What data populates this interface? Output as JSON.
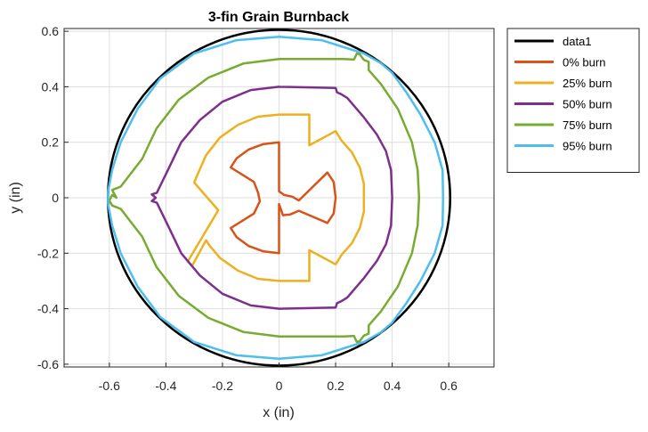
{
  "chart_data": {
    "type": "line",
    "title": "3-fin Grain Burnback",
    "xlabel": "x (in)",
    "ylabel": "y (in)",
    "xlim": [
      -0.76,
      0.76
    ],
    "ylim": [
      -0.61,
      0.61
    ],
    "x_ticks": [
      -0.6,
      -0.4,
      -0.2,
      0,
      0.2,
      0.4,
      0.6
    ],
    "y_ticks": [
      -0.6,
      -0.4,
      -0.2,
      0,
      0.2,
      0.4,
      0.6
    ],
    "x_tick_labels": [
      "-0.6",
      "-0.4",
      "-0.2",
      "0",
      "0.2",
      "0.4",
      "0.6"
    ],
    "y_tick_labels": [
      "-0.6",
      "-0.4",
      "-0.2",
      "0",
      "0.2",
      "0.4",
      "0.6"
    ],
    "grid": true,
    "legend_position": "top-right-outside",
    "series": [
      {
        "name": "data1",
        "color": "#000000",
        "circle": {
          "cx": 0,
          "cy": 0,
          "r": 0.605
        }
      },
      {
        "name": "0% burn",
        "color": "#d95319",
        "points": [
          [
            0.0,
            -0.023
          ],
          [
            0.0,
            -0.2
          ],
          [
            -0.057,
            -0.193
          ],
          [
            -0.107,
            -0.174
          ],
          [
            -0.15,
            -0.142
          ],
          [
            -0.171,
            -0.109
          ],
          [
            -0.089,
            -0.057
          ],
          [
            -0.068,
            -0.013
          ],
          [
            -0.074,
            0.018
          ],
          [
            -0.089,
            0.057
          ],
          [
            -0.171,
            0.109
          ],
          [
            -0.15,
            0.142
          ],
          [
            -0.107,
            0.174
          ],
          [
            -0.057,
            0.193
          ],
          [
            0.0,
            0.2
          ],
          [
            0.0,
            0.023
          ],
          [
            0.018,
            0.01
          ],
          [
            0.047,
            0.004
          ],
          [
            0.07,
            -0.01
          ],
          [
            0.171,
            0.091
          ],
          [
            0.193,
            0.057
          ],
          [
            0.2,
            0.0
          ],
          [
            0.193,
            -0.057
          ],
          [
            0.171,
            -0.091
          ],
          [
            0.07,
            -0.047
          ],
          [
            0.04,
            -0.06
          ],
          [
            0.014,
            -0.063
          ],
          [
            0.0,
            -0.023
          ]
        ]
      },
      {
        "name": "25% burn",
        "color": "#edb120",
        "points": [
          [
            0.0,
            0.3
          ],
          [
            0.107,
            0.3
          ],
          [
            0.107,
            0.189
          ],
          [
            0.2,
            0.24
          ],
          [
            0.221,
            0.206
          ],
          [
            0.258,
            0.163
          ],
          [
            0.286,
            0.108
          ],
          [
            0.3,
            0.05
          ],
          [
            0.3,
            -0.05
          ],
          [
            0.286,
            -0.108
          ],
          [
            0.258,
            -0.163
          ],
          [
            0.221,
            -0.206
          ],
          [
            0.2,
            -0.24
          ],
          [
            0.107,
            -0.189
          ],
          [
            0.107,
            -0.3
          ],
          [
            0.0,
            -0.3
          ],
          [
            -0.075,
            -0.292
          ],
          [
            -0.145,
            -0.263
          ],
          [
            -0.209,
            -0.217
          ],
          [
            -0.246,
            -0.172
          ],
          [
            -0.258,
            -0.153
          ],
          [
            -0.307,
            -0.245
          ],
          [
            -0.323,
            -0.23
          ],
          [
            -0.215,
            -0.045
          ],
          [
            -0.3,
            0.055
          ],
          [
            -0.29,
            0.079
          ],
          [
            -0.258,
            0.153
          ],
          [
            -0.209,
            0.217
          ],
          [
            -0.145,
            0.263
          ],
          [
            -0.075,
            0.292
          ],
          [
            0.0,
            0.3
          ]
        ]
      },
      {
        "name": "50% burn",
        "color": "#7e2f8e",
        "points": [
          [
            0.0,
            0.4
          ],
          [
            0.2,
            0.396
          ],
          [
            0.205,
            0.38
          ],
          [
            0.22,
            0.373
          ],
          [
            0.241,
            0.36
          ],
          [
            0.3,
            0.29
          ],
          [
            0.346,
            0.228
          ],
          [
            0.378,
            0.168
          ],
          [
            0.396,
            0.1
          ],
          [
            0.4,
            0.0
          ],
          [
            0.396,
            -0.1
          ],
          [
            0.378,
            -0.168
          ],
          [
            0.346,
            -0.228
          ],
          [
            0.3,
            -0.29
          ],
          [
            0.241,
            -0.36
          ],
          [
            0.22,
            -0.373
          ],
          [
            0.205,
            -0.38
          ],
          [
            0.2,
            -0.396
          ],
          [
            0.0,
            -0.4
          ],
          [
            -0.1,
            -0.388
          ],
          [
            -0.2,
            -0.346
          ],
          [
            -0.28,
            -0.28
          ],
          [
            -0.346,
            -0.2
          ],
          [
            -0.388,
            -0.11
          ],
          [
            -0.432,
            -0.018
          ],
          [
            -0.45,
            -0.012
          ],
          [
            -0.436,
            0.0
          ],
          [
            -0.45,
            0.012
          ],
          [
            -0.432,
            0.018
          ],
          [
            -0.388,
            0.11
          ],
          [
            -0.346,
            0.2
          ],
          [
            -0.28,
            0.28
          ],
          [
            -0.2,
            0.346
          ],
          [
            -0.1,
            0.388
          ],
          [
            0.0,
            0.4
          ]
        ]
      },
      {
        "name": "75% burn",
        "color": "#77ac30",
        "points": [
          [
            0.0,
            0.5
          ],
          [
            0.23,
            0.5
          ],
          [
            0.265,
            0.498
          ],
          [
            0.275,
            0.52
          ],
          [
            0.285,
            0.517
          ],
          [
            0.3,
            0.497
          ],
          [
            0.317,
            0.49
          ],
          [
            0.317,
            0.46
          ],
          [
            0.36,
            0.41
          ],
          [
            0.42,
            0.32
          ],
          [
            0.47,
            0.2
          ],
          [
            0.49,
            0.1
          ],
          [
            0.495,
            0.0
          ],
          [
            0.49,
            -0.1
          ],
          [
            0.47,
            -0.2
          ],
          [
            0.42,
            -0.32
          ],
          [
            0.36,
            -0.41
          ],
          [
            0.317,
            -0.46
          ],
          [
            0.317,
            -0.49
          ],
          [
            0.3,
            -0.497
          ],
          [
            0.285,
            -0.517
          ],
          [
            0.275,
            -0.52
          ],
          [
            0.265,
            -0.498
          ],
          [
            0.23,
            -0.5
          ],
          [
            0.0,
            -0.5
          ],
          [
            -0.125,
            -0.484
          ],
          [
            -0.25,
            -0.433
          ],
          [
            -0.354,
            -0.354
          ],
          [
            -0.433,
            -0.25
          ],
          [
            -0.484,
            -0.14
          ],
          [
            -0.56,
            -0.04
          ],
          [
            -0.59,
            -0.028
          ],
          [
            -0.6,
            -0.01
          ],
          [
            -0.59,
            0.01
          ],
          [
            -0.575,
            0.0
          ],
          [
            -0.59,
            0.028
          ],
          [
            -0.56,
            0.04
          ],
          [
            -0.484,
            0.14
          ],
          [
            -0.433,
            0.25
          ],
          [
            -0.354,
            0.354
          ],
          [
            -0.25,
            0.433
          ],
          [
            -0.125,
            0.484
          ],
          [
            0.0,
            0.5
          ]
        ]
      },
      {
        "name": "95% burn",
        "color": "#4dbeee",
        "points": [
          [
            0.0,
            0.58
          ],
          [
            0.15,
            0.568
          ],
          [
            0.3,
            0.52
          ],
          [
            0.36,
            0.485
          ],
          [
            0.4,
            0.45
          ],
          [
            0.45,
            0.38
          ],
          [
            0.5,
            0.3
          ],
          [
            0.55,
            0.2
          ],
          [
            0.578,
            0.1
          ],
          [
            0.58,
            0.0
          ],
          [
            0.578,
            -0.1
          ],
          [
            0.55,
            -0.2
          ],
          [
            0.5,
            -0.3
          ],
          [
            0.45,
            -0.38
          ],
          [
            0.4,
            -0.45
          ],
          [
            0.36,
            -0.485
          ],
          [
            0.3,
            -0.52
          ],
          [
            0.15,
            -0.568
          ],
          [
            0.0,
            -0.58
          ],
          [
            -0.15,
            -0.568
          ],
          [
            -0.3,
            -0.52
          ],
          [
            -0.42,
            -0.43
          ],
          [
            -0.5,
            -0.32
          ],
          [
            -0.56,
            -0.2
          ],
          [
            -0.59,
            -0.1
          ],
          [
            -0.605,
            -0.02
          ],
          [
            -0.605,
            0.02
          ],
          [
            -0.59,
            0.1
          ],
          [
            -0.56,
            0.2
          ],
          [
            -0.5,
            0.32
          ],
          [
            -0.42,
            0.43
          ],
          [
            -0.3,
            0.52
          ],
          [
            -0.15,
            0.568
          ],
          [
            0.0,
            0.58
          ]
        ]
      }
    ]
  }
}
